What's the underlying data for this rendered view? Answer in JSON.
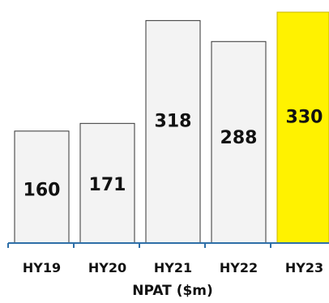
{
  "chart_data": {
    "type": "bar",
    "categories": [
      "HY19",
      "HY20",
      "HY21",
      "HY22",
      "HY23"
    ],
    "values": [
      160,
      171,
      318,
      288,
      330
    ],
    "data_labels": [
      "160",
      "171",
      "318",
      "288",
      "330"
    ],
    "title": "",
    "xlabel": "NPAT ($m)",
    "ylabel": "",
    "ylim": [
      0,
      330
    ],
    "grid": false,
    "legend": "none",
    "colors": {
      "bar_fill": "#f3f3f3",
      "bar_stroke": "#333333",
      "highlight_fill": "#fff200",
      "highlight_stroke": "#c8b400",
      "axis": "#2e6fa8"
    },
    "highlight_index": 4
  }
}
